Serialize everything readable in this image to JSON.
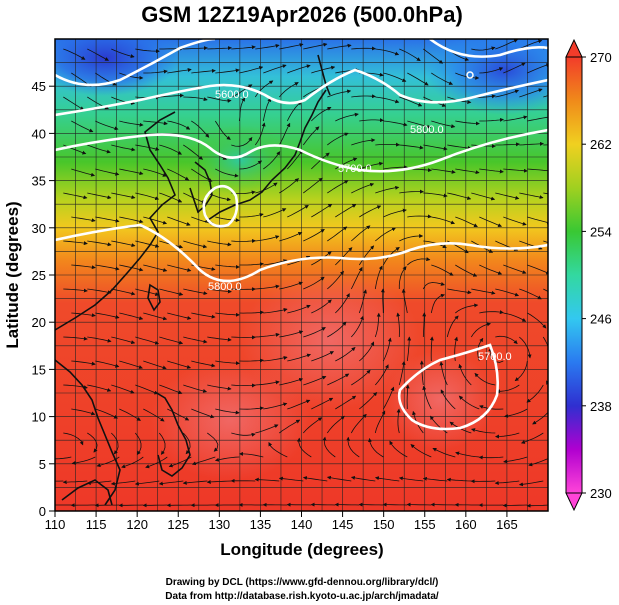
{
  "title": "GSM 12Z19Apr2026 (500.0hPa)",
  "xlabel": "Longitude (degrees)",
  "ylabel": "Latitude  (degrees)",
  "credits": [
    "Drawing by DCL (https://www.gfd-dennou.org/library/dcl/)",
    "Data from http://database.rish.kyoto-u.ac.jp/arch/jmadata/"
  ],
  "map": {
    "xlim": [
      110,
      170
    ],
    "ylim": [
      0,
      50
    ],
    "xticks": [
      110,
      115,
      120,
      125,
      130,
      135,
      140,
      145,
      150,
      155,
      160,
      165
    ],
    "yticks": [
      0,
      5,
      10,
      15,
      20,
      25,
      30,
      35,
      40,
      45
    ],
    "grid_step_deg": 2.5
  },
  "colorbar": {
    "min": 230,
    "max": 270,
    "ticks": [
      "230",
      "238",
      "246",
      "254",
      "262",
      "270"
    ]
  },
  "contour_labels": [
    "5600.0",
    "5800.0",
    "5700.0",
    "5800.0",
    "5700.0"
  ],
  "colors": {
    "cb_230": "#ff44d8",
    "cb_234": "#b000d0",
    "cb_238": "#2f2fd0",
    "cb_242": "#2a7af0",
    "cb_246": "#33c8f0",
    "cb_250": "#33d8a0",
    "cb_254": "#39c833",
    "cb_258": "#a0d020",
    "cb_262": "#f0d020",
    "cb_266": "#f08a1a",
    "cb_270": "#f23c2a"
  }
}
